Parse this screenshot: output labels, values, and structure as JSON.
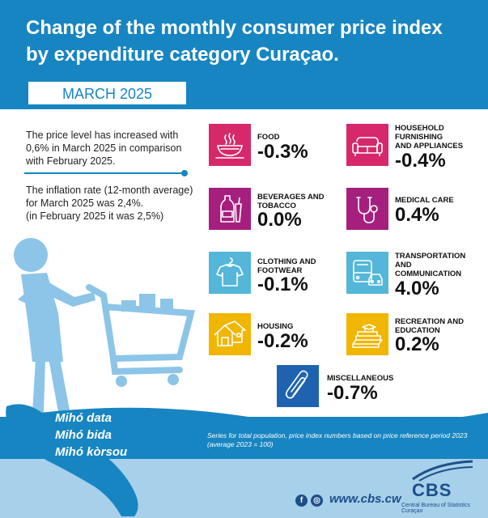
{
  "header": {
    "title_line1": "Change of the monthly consumer price index",
    "title_line2": "by expenditure category Curaçao.",
    "month": "MARCH 2025"
  },
  "intro": {
    "p1_l1": "The price level has increased with",
    "p1_l2": "0,6% in March 2025 in comparison",
    "p1_l3": "with February 2025.",
    "p2_l1": "The inflation rate (12-month average)",
    "p2_l2": "for March 2025 was 2,4%.",
    "p2_l3": "(in February 2025 it was 2,5%)"
  },
  "categories": {
    "food": {
      "label": "FOOD",
      "value": "-0.3%",
      "color": "#d6286a",
      "icon": "food-bowl-icon"
    },
    "household": {
      "label1": "HOUSEHOLD",
      "label2": "FURNISHING",
      "label3": "AND APPLIANCES",
      "value": "-0.4%",
      "color": "#d6286a",
      "icon": "sofa-icon"
    },
    "beverages": {
      "label1": "BEVERAGES AND",
      "label2": "TOBACCO",
      "value": "0.0%",
      "color": "#a61f7e",
      "icon": "bottle-icon"
    },
    "medical": {
      "label": "MEDICAL CARE",
      "value": "0.4%",
      "color": "#a61f7e",
      "icon": "stethoscope-icon"
    },
    "clothing": {
      "label1": "CLOTHING AND",
      "label2": "FOOTWEAR",
      "value": "-0.1%",
      "color": "#54b6d9",
      "icon": "shirt-icon"
    },
    "transport": {
      "label1": "TRANSPORTATION",
      "label2": "AND",
      "label3": "COMMUNICATION",
      "value": "4.0%",
      "color": "#54b6d9",
      "icon": "bus-car-icon"
    },
    "housing": {
      "label": "HOUSING",
      "value": "-0.2%",
      "color": "#f0b600",
      "icon": "house-icon"
    },
    "recreation": {
      "label1": "RECREATION AND",
      "label2": "EDUCATION",
      "value": "0.2%",
      "color": "#f0b600",
      "icon": "books-icon"
    },
    "misc": {
      "label": "MISCELLANEOUS",
      "value": "-0.7%",
      "color": "#1f63b0",
      "icon": "paperclip-icon"
    }
  },
  "footer": {
    "note_l1": "Series for total population, price index numbers based on price reference period 2023",
    "note_l2": "(average 2023 = 100)",
    "slogan1": "Mihó data",
    "slogan2": "Mihó bida",
    "slogan3": "Mihó kòrsou",
    "url": "www.cbs.cw",
    "logo": "CBS",
    "logo_sub": "Central Bureau of Statistics Curaçao",
    "facebook": "f",
    "instagram": "◎"
  }
}
